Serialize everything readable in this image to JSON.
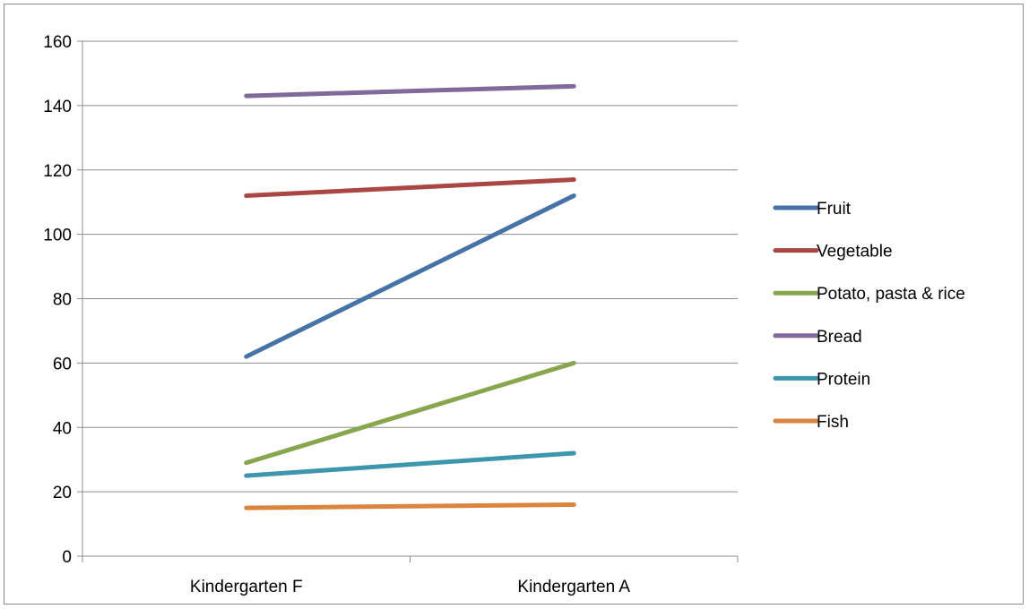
{
  "chart_data": {
    "type": "line",
    "title": "",
    "xlabel": "",
    "ylabel": "",
    "categories": [
      "Kindergarten F",
      "Kindergarten A"
    ],
    "ylim": [
      0,
      160
    ],
    "yticks": [
      0,
      20,
      40,
      60,
      80,
      100,
      120,
      140,
      160
    ],
    "grid": true,
    "legend_position": "right",
    "series": [
      {
        "name": "Fruit",
        "values": [
          62,
          112
        ],
        "color": "#4572A7"
      },
      {
        "name": "Vegetable",
        "values": [
          112,
          117
        ],
        "color": "#AA4643"
      },
      {
        "name": "Potato, pasta & rice",
        "values": [
          29,
          60
        ],
        "color": "#89A54E"
      },
      {
        "name": "Bread",
        "values": [
          143,
          146
        ],
        "color": "#80699B"
      },
      {
        "name": "Protein",
        "values": [
          25,
          32
        ],
        "color": "#3D96AE"
      },
      {
        "name": "Fish",
        "values": [
          15,
          16
        ],
        "color": "#DB843D"
      }
    ]
  }
}
